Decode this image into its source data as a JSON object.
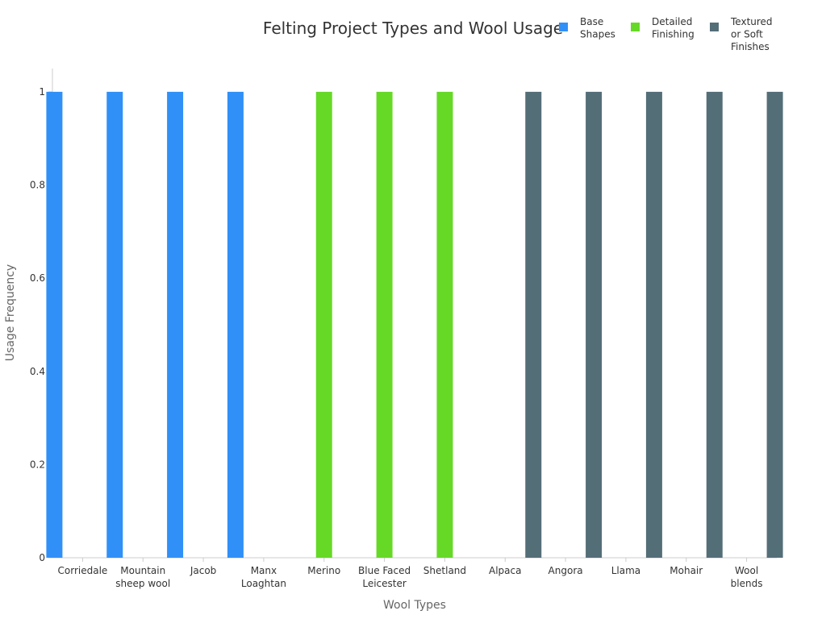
{
  "chart_data": {
    "type": "bar",
    "title": "Felting Project Types and Wool Usage",
    "xlabel": "Wool Types",
    "ylabel": "Usage Frequency",
    "ylim": [
      0,
      1.05
    ],
    "yticks": [
      "0",
      "0.2",
      "0.4",
      "0.6",
      "0.8",
      "1"
    ],
    "categories": [
      "Corriedale",
      "Mountain sheep wool",
      "Jacob",
      "Manx Loaghtan",
      "Merino",
      "Blue Faced Leicester",
      "Shetland",
      "Alpaca",
      "Angora",
      "Llama",
      "Mohair",
      "Wool blends"
    ],
    "category_lines": [
      [
        "Corriedale"
      ],
      [
        "Mountain",
        "sheep wool"
      ],
      [
        "Jacob"
      ],
      [
        "Manx",
        "Loaghtan"
      ],
      [
        "Merino"
      ],
      [
        "Blue Faced",
        "Leicester"
      ],
      [
        "Shetland"
      ],
      [
        "Alpaca"
      ],
      [
        "Angora"
      ],
      [
        "Llama"
      ],
      [
        "Mohair"
      ],
      [
        "Wool",
        "blends"
      ]
    ],
    "series": [
      {
        "name": "Base Shapes",
        "name_lines": [
          "Base",
          "Shapes"
        ],
        "color": "#3090f7",
        "values": [
          1,
          1,
          1,
          1,
          0,
          0,
          0,
          0,
          0,
          0,
          0,
          0
        ]
      },
      {
        "name": "Detailed Finishing",
        "name_lines": [
          "Detailed",
          "Finishing"
        ],
        "color": "#66d926",
        "values": [
          0,
          0,
          0,
          0,
          1,
          1,
          1,
          0,
          0,
          0,
          0,
          0
        ]
      },
      {
        "name": "Textured or Soft Finishes",
        "name_lines": [
          "Textured",
          "or Soft",
          "Finishes"
        ],
        "color": "#546e78",
        "values": [
          0,
          0,
          0,
          0,
          0,
          0,
          0,
          1,
          1,
          1,
          1,
          1
        ]
      }
    ],
    "grid": false,
    "legend_position": "top-right"
  }
}
